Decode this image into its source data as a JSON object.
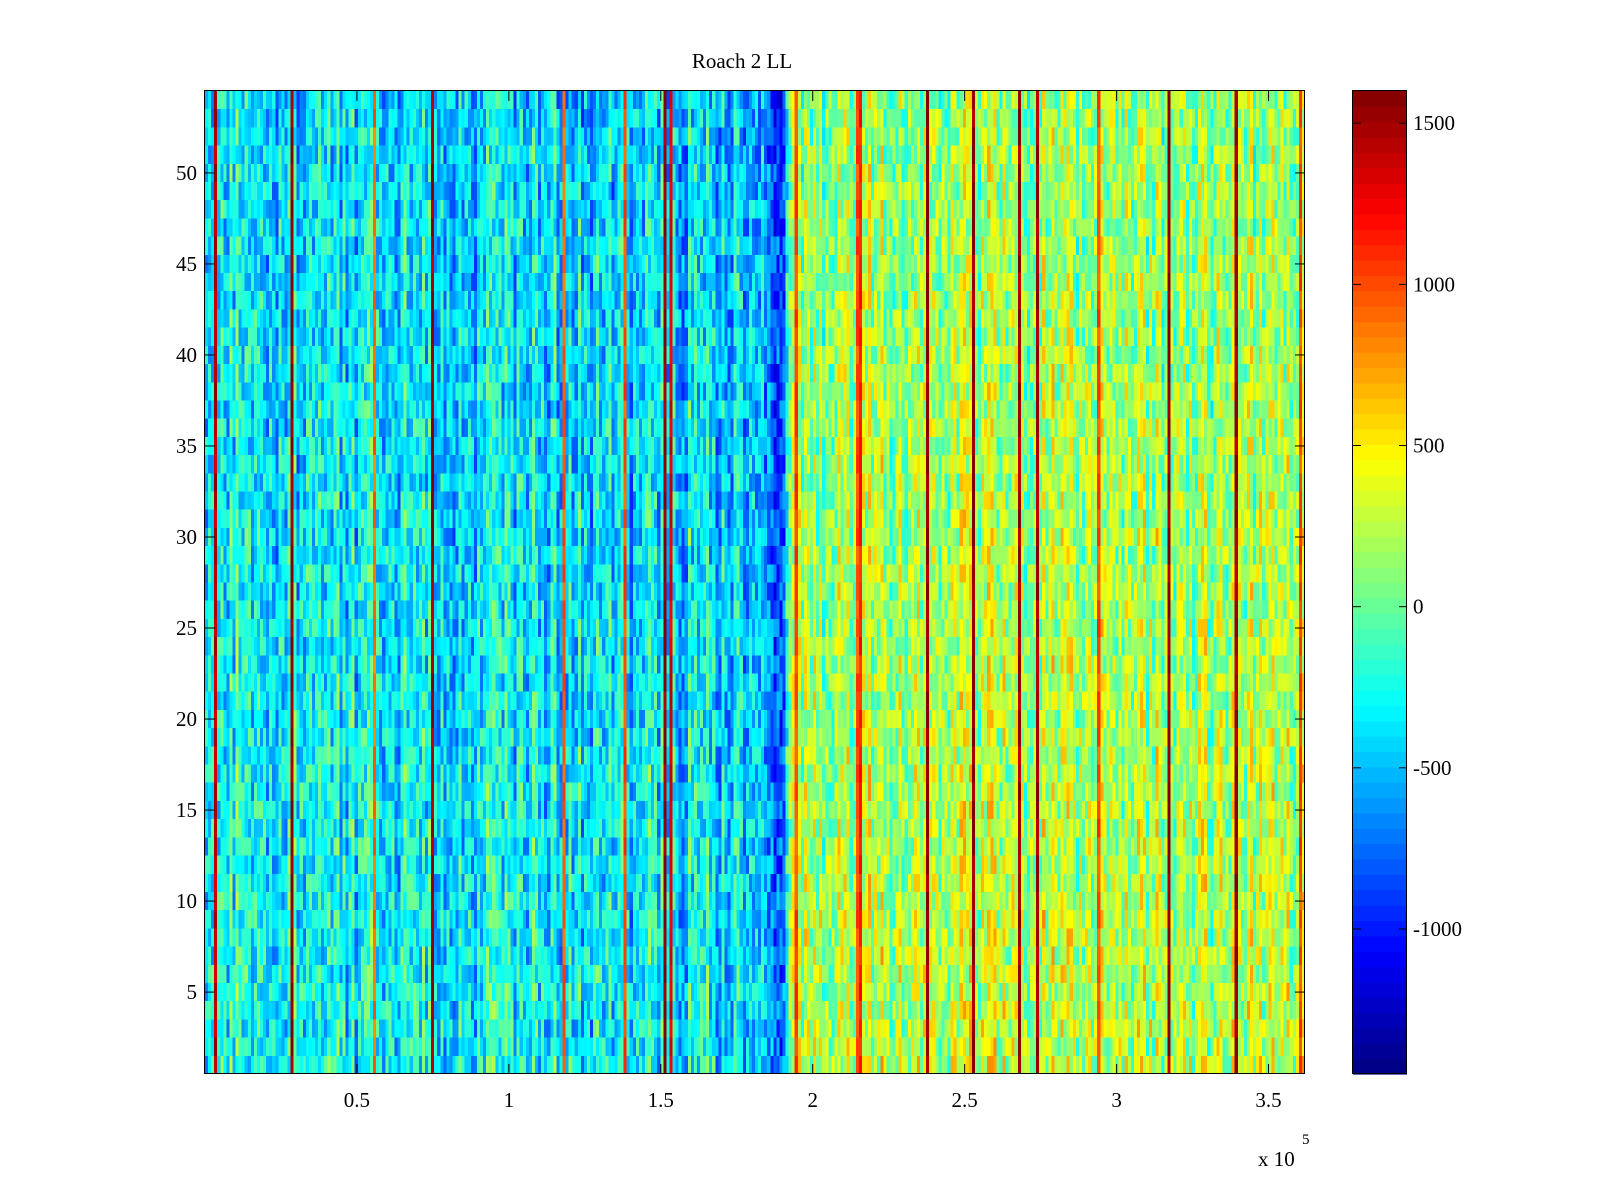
{
  "chart_data": {
    "type": "heatmap",
    "title": "Roach 2 LL",
    "xlabel": "",
    "ylabel": "",
    "x_exponent_label": {
      "base": "x 10",
      "exponent": "5"
    },
    "xlim": [
      0,
      3.62
    ],
    "ylim": [
      0.5,
      54.5
    ],
    "xticks": [
      {
        "value": 0.5,
        "label": "0.5"
      },
      {
        "value": 1,
        "label": "1"
      },
      {
        "value": 1.5,
        "label": "1.5"
      },
      {
        "value": 2,
        "label": "2"
      },
      {
        "value": 2.5,
        "label": "2.5"
      },
      {
        "value": 3,
        "label": "3"
      },
      {
        "value": 3.5,
        "label": "3.5"
      }
    ],
    "yticks": [
      {
        "value": 5,
        "label": "5"
      },
      {
        "value": 10,
        "label": "10"
      },
      {
        "value": 15,
        "label": "15"
      },
      {
        "value": 20,
        "label": "20"
      },
      {
        "value": 25,
        "label": "25"
      },
      {
        "value": 30,
        "label": "30"
      },
      {
        "value": 35,
        "label": "35"
      },
      {
        "value": 40,
        "label": "40"
      },
      {
        "value": 45,
        "label": "45"
      },
      {
        "value": 50,
        "label": "50"
      }
    ],
    "colorbar": {
      "colormap": "jet",
      "range": [
        -1450,
        1600
      ],
      "ticks": [
        {
          "value": -1000,
          "label": "-1000"
        },
        {
          "value": -500,
          "label": "-500"
        },
        {
          "value": 0,
          "label": "0"
        },
        {
          "value": 500,
          "label": "500"
        },
        {
          "value": 1000,
          "label": "1000"
        },
        {
          "value": 1500,
          "label": "1500"
        }
      ]
    },
    "rows": 54,
    "columns": 360,
    "x_column_step": 0.01,
    "column_baseline_profile": [
      {
        "x": 0.0,
        "value": -150
      },
      {
        "x": 0.2,
        "value": -250
      },
      {
        "x": 0.4,
        "value": -280
      },
      {
        "x": 0.6,
        "value": -250
      },
      {
        "x": 0.8,
        "value": -320
      },
      {
        "x": 1.0,
        "value": -280
      },
      {
        "x": 1.2,
        "value": -300
      },
      {
        "x": 1.4,
        "value": -330
      },
      {
        "x": 1.6,
        "value": -300
      },
      {
        "x": 1.8,
        "value": -420
      },
      {
        "x": 1.88,
        "value": -750
      },
      {
        "x": 1.92,
        "value": 150
      },
      {
        "x": 2.0,
        "value": 200
      },
      {
        "x": 2.2,
        "value": 300
      },
      {
        "x": 2.4,
        "value": 280
      },
      {
        "x": 2.6,
        "value": 300
      },
      {
        "x": 2.8,
        "value": 270
      },
      {
        "x": 3.0,
        "value": 290
      },
      {
        "x": 3.2,
        "value": 250
      },
      {
        "x": 3.4,
        "value": 270
      },
      {
        "x": 3.62,
        "value": 300
      }
    ],
    "high_value_stripes": [
      {
        "x": 0.03,
        "value": 1450
      },
      {
        "x": 0.28,
        "value": 1550
      },
      {
        "x": 0.55,
        "value": 900
      },
      {
        "x": 0.74,
        "value": 1500
      },
      {
        "x": 1.17,
        "value": 950
      },
      {
        "x": 1.37,
        "value": 1000
      },
      {
        "x": 1.5,
        "value": 1550
      },
      {
        "x": 1.52,
        "value": 1300
      },
      {
        "x": 1.93,
        "value": 1000
      },
      {
        "x": 2.13,
        "value": 1000
      },
      {
        "x": 2.14,
        "value": 1150
      },
      {
        "x": 2.36,
        "value": 1550
      },
      {
        "x": 2.51,
        "value": 1550
      },
      {
        "x": 2.66,
        "value": 1500
      },
      {
        "x": 2.72,
        "value": 1500
      },
      {
        "x": 2.92,
        "value": 1000
      },
      {
        "x": 3.15,
        "value": 1550
      },
      {
        "x": 3.37,
        "value": 1500
      },
      {
        "x": 3.58,
        "value": 1000
      }
    ],
    "row_gradient_bottom_offset": -120,
    "noise_amplitude": 350,
    "random_seed": 12345
  }
}
